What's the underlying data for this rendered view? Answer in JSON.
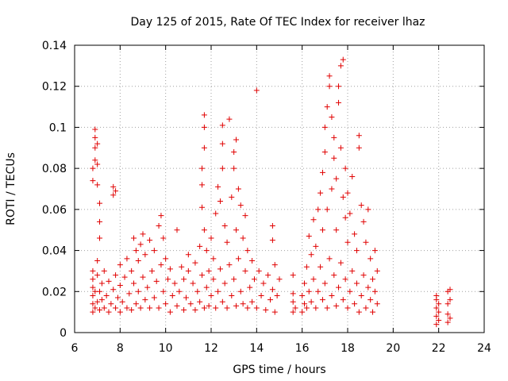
{
  "chart_data": {
    "type": "scatter",
    "title": "Day 125 of 2015, Rate Of TEC Index for receiver lhaz",
    "xlabel": "GPS time / hours",
    "ylabel": "ROTI / TECUs",
    "xlim": [
      6,
      24
    ],
    "ylim": [
      0,
      0.14
    ],
    "grid": true,
    "marker": "+",
    "color": "#e00000",
    "xticks": [
      6,
      8,
      10,
      12,
      14,
      16,
      18,
      20,
      22,
      24
    ],
    "xtick_labels": [
      "6",
      "8",
      "10",
      "12",
      "14",
      "16",
      "18",
      "20",
      "22",
      "24"
    ],
    "yticks": [
      0,
      0.02,
      0.04,
      0.06,
      0.08,
      0.1,
      0.12,
      0.14
    ],
    "ytick_labels": [
      "0",
      "0.02",
      "0.04",
      "0.06",
      "0.08",
      "0.1",
      "0.12",
      "0.14"
    ],
    "series": [
      {
        "name": "ROTI",
        "points": [
          [
            6.8,
            0.01
          ],
          [
            6.8,
            0.014
          ],
          [
            6.8,
            0.018
          ],
          [
            6.8,
            0.022
          ],
          [
            6.8,
            0.026
          ],
          [
            6.8,
            0.03
          ],
          [
            6.8,
            0.074
          ],
          [
            6.8,
            0.08
          ],
          [
            6.9,
            0.012
          ],
          [
            6.9,
            0.02
          ],
          [
            6.9,
            0.084
          ],
          [
            6.9,
            0.09
          ],
          [
            6.9,
            0.095
          ],
          [
            6.9,
            0.099
          ],
          [
            7.0,
            0.015
          ],
          [
            7.0,
            0.028
          ],
          [
            7.0,
            0.035
          ],
          [
            7.0,
            0.072
          ],
          [
            7.0,
            0.082
          ],
          [
            7.0,
            0.092
          ],
          [
            7.1,
            0.011
          ],
          [
            7.1,
            0.02
          ],
          [
            7.1,
            0.046
          ],
          [
            7.1,
            0.054
          ],
          [
            7.1,
            0.063
          ],
          [
            7.2,
            0.016
          ],
          [
            7.2,
            0.024
          ],
          [
            7.3,
            0.012
          ],
          [
            7.3,
            0.03
          ],
          [
            7.4,
            0.018
          ],
          [
            7.5,
            0.01
          ],
          [
            7.5,
            0.025
          ],
          [
            7.6,
            0.014
          ],
          [
            7.7,
            0.021
          ],
          [
            7.7,
            0.067
          ],
          [
            7.7,
            0.071
          ],
          [
            7.8,
            0.012
          ],
          [
            7.8,
            0.028
          ],
          [
            7.8,
            0.069
          ],
          [
            7.9,
            0.017
          ],
          [
            8.0,
            0.01
          ],
          [
            8.0,
            0.023
          ],
          [
            8.0,
            0.033
          ],
          [
            8.1,
            0.015
          ],
          [
            8.2,
            0.027
          ],
          [
            8.3,
            0.012
          ],
          [
            8.3,
            0.036
          ],
          [
            8.4,
            0.019
          ],
          [
            8.5,
            0.011
          ],
          [
            8.5,
            0.03
          ],
          [
            8.6,
            0.024
          ],
          [
            8.6,
            0.046
          ],
          [
            8.7,
            0.014
          ],
          [
            8.7,
            0.04
          ],
          [
            8.8,
            0.02
          ],
          [
            8.8,
            0.035
          ],
          [
            8.9,
            0.012
          ],
          [
            8.9,
            0.043
          ],
          [
            9.0,
            0.027
          ],
          [
            9.0,
            0.048
          ],
          [
            9.1,
            0.016
          ],
          [
            9.1,
            0.038
          ],
          [
            9.2,
            0.022
          ],
          [
            9.3,
            0.012
          ],
          [
            9.3,
            0.045
          ],
          [
            9.4,
            0.03
          ],
          [
            9.5,
            0.017
          ],
          [
            9.5,
            0.04
          ],
          [
            9.6,
            0.025
          ],
          [
            9.7,
            0.012
          ],
          [
            9.7,
            0.052
          ],
          [
            9.8,
            0.033
          ],
          [
            9.8,
            0.057
          ],
          [
            9.9,
            0.02
          ],
          [
            9.9,
            0.046
          ],
          [
            10.0,
            0.014
          ],
          [
            10.0,
            0.036
          ],
          [
            10.1,
            0.026
          ],
          [
            10.2,
            0.01
          ],
          [
            10.2,
            0.031
          ],
          [
            10.3,
            0.018
          ],
          [
            10.4,
            0.024
          ],
          [
            10.5,
            0.013
          ],
          [
            10.5,
            0.05
          ],
          [
            10.6,
            0.02
          ],
          [
            10.7,
            0.032
          ],
          [
            10.8,
            0.011
          ],
          [
            10.8,
            0.026
          ],
          [
            10.9,
            0.017
          ],
          [
            11.0,
            0.03
          ],
          [
            11.0,
            0.038
          ],
          [
            11.1,
            0.014
          ],
          [
            11.2,
            0.024
          ],
          [
            11.3,
            0.011
          ],
          [
            11.3,
            0.034
          ],
          [
            11.4,
            0.02
          ],
          [
            11.5,
            0.015
          ],
          [
            11.5,
            0.042
          ],
          [
            11.6,
            0.028
          ],
          [
            11.6,
            0.061
          ],
          [
            11.6,
            0.072
          ],
          [
            11.6,
            0.08
          ],
          [
            11.7,
            0.012
          ],
          [
            11.7,
            0.05
          ],
          [
            11.7,
            0.09
          ],
          [
            11.7,
            0.1
          ],
          [
            11.7,
            0.106
          ],
          [
            11.8,
            0.022
          ],
          [
            11.8,
            0.04
          ],
          [
            11.9,
            0.013
          ],
          [
            11.9,
            0.03
          ],
          [
            12.0,
            0.018
          ],
          [
            12.0,
            0.046
          ],
          [
            12.1,
            0.026
          ],
          [
            12.1,
            0.036
          ],
          [
            12.2,
            0.012
          ],
          [
            12.2,
            0.058
          ],
          [
            12.3,
            0.02
          ],
          [
            12.3,
            0.071
          ],
          [
            12.4,
            0.031
          ],
          [
            12.4,
            0.064
          ],
          [
            12.5,
            0.015
          ],
          [
            12.5,
            0.08
          ],
          [
            12.5,
            0.092
          ],
          [
            12.5,
            0.101
          ],
          [
            12.6,
            0.024
          ],
          [
            12.6,
            0.052
          ],
          [
            12.7,
            0.012
          ],
          [
            12.7,
            0.044
          ],
          [
            12.8,
            0.033
          ],
          [
            12.8,
            0.104
          ],
          [
            12.9,
            0.018
          ],
          [
            12.9,
            0.066
          ],
          [
            13.0,
            0.026
          ],
          [
            13.0,
            0.08
          ],
          [
            13.0,
            0.088
          ],
          [
            13.1,
            0.013
          ],
          [
            13.1,
            0.05
          ],
          [
            13.1,
            0.094
          ],
          [
            13.2,
            0.036
          ],
          [
            13.2,
            0.07
          ],
          [
            13.3,
            0.02
          ],
          [
            13.3,
            0.062
          ],
          [
            13.4,
            0.014
          ],
          [
            13.4,
            0.046
          ],
          [
            13.5,
            0.03
          ],
          [
            13.5,
            0.057
          ],
          [
            13.6,
            0.012
          ],
          [
            13.6,
            0.04
          ],
          [
            13.7,
            0.022
          ],
          [
            13.8,
            0.015
          ],
          [
            13.8,
            0.035
          ],
          [
            13.9,
            0.026
          ],
          [
            14.0,
            0.012
          ],
          [
            14.0,
            0.118
          ],
          [
            14.1,
            0.03
          ],
          [
            14.2,
            0.018
          ],
          [
            14.3,
            0.024
          ],
          [
            14.4,
            0.011
          ],
          [
            14.5,
            0.028
          ],
          [
            14.6,
            0.016
          ],
          [
            14.7,
            0.021
          ],
          [
            14.7,
            0.045
          ],
          [
            14.7,
            0.052
          ],
          [
            14.8,
            0.01
          ],
          [
            14.8,
            0.033
          ],
          [
            14.9,
            0.018
          ],
          [
            15.0,
            0.026
          ],
          [
            15.6,
            0.01
          ],
          [
            15.6,
            0.015
          ],
          [
            15.6,
            0.019
          ],
          [
            15.6,
            0.028
          ],
          [
            15.7,
            0.012
          ],
          [
            16.0,
            0.01
          ],
          [
            16.0,
            0.018
          ],
          [
            16.1,
            0.014
          ],
          [
            16.1,
            0.024
          ],
          [
            16.2,
            0.012
          ],
          [
            16.2,
            0.032
          ],
          [
            16.3,
            0.02
          ],
          [
            16.3,
            0.047
          ],
          [
            16.4,
            0.015
          ],
          [
            16.4,
            0.038
          ],
          [
            16.5,
            0.026
          ],
          [
            16.5,
            0.055
          ],
          [
            16.6,
            0.012
          ],
          [
            16.6,
            0.042
          ],
          [
            16.7,
            0.02
          ],
          [
            16.7,
            0.06
          ],
          [
            16.8,
            0.032
          ],
          [
            16.8,
            0.068
          ],
          [
            16.9,
            0.016
          ],
          [
            16.9,
            0.05
          ],
          [
            16.9,
            0.078
          ],
          [
            17.0,
            0.024
          ],
          [
            17.0,
            0.088
          ],
          [
            17.0,
            0.1
          ],
          [
            17.1,
            0.012
          ],
          [
            17.1,
            0.06
          ],
          [
            17.1,
            0.11
          ],
          [
            17.2,
            0.036
          ],
          [
            17.2,
            0.12
          ],
          [
            17.2,
            0.125
          ],
          [
            17.3,
            0.018
          ],
          [
            17.3,
            0.07
          ],
          [
            17.3,
            0.105
          ],
          [
            17.4,
            0.028
          ],
          [
            17.4,
            0.085
          ],
          [
            17.4,
            0.095
          ],
          [
            17.5,
            0.013
          ],
          [
            17.5,
            0.05
          ],
          [
            17.5,
            0.075
          ],
          [
            17.6,
            0.022
          ],
          [
            17.6,
            0.112
          ],
          [
            17.6,
            0.12
          ],
          [
            17.7,
            0.034
          ],
          [
            17.7,
            0.09
          ],
          [
            17.7,
            0.13
          ],
          [
            17.8,
            0.016
          ],
          [
            17.8,
            0.066
          ],
          [
            17.8,
            0.133
          ],
          [
            17.9,
            0.026
          ],
          [
            17.9,
            0.056
          ],
          [
            17.9,
            0.08
          ],
          [
            18.0,
            0.012
          ],
          [
            18.0,
            0.044
          ],
          [
            18.0,
            0.068
          ],
          [
            18.1,
            0.02
          ],
          [
            18.1,
            0.058
          ],
          [
            18.2,
            0.03
          ],
          [
            18.2,
            0.076
          ],
          [
            18.3,
            0.014
          ],
          [
            18.3,
            0.048
          ],
          [
            18.4,
            0.024
          ],
          [
            18.4,
            0.04
          ],
          [
            18.5,
            0.01
          ],
          [
            18.5,
            0.09
          ],
          [
            18.5,
            0.096
          ],
          [
            18.6,
            0.018
          ],
          [
            18.6,
            0.062
          ],
          [
            18.7,
            0.028
          ],
          [
            18.7,
            0.054
          ],
          [
            18.8,
            0.012
          ],
          [
            18.8,
            0.044
          ],
          [
            18.9,
            0.022
          ],
          [
            18.9,
            0.06
          ],
          [
            19.0,
            0.016
          ],
          [
            19.0,
            0.036
          ],
          [
            19.1,
            0.01
          ],
          [
            19.1,
            0.026
          ],
          [
            19.2,
            0.02
          ],
          [
            19.2,
            0.04
          ],
          [
            19.3,
            0.014
          ],
          [
            19.3,
            0.03
          ],
          [
            21.9,
            0.004
          ],
          [
            21.9,
            0.008
          ],
          [
            21.9,
            0.012
          ],
          [
            21.9,
            0.016
          ],
          [
            21.9,
            0.018
          ],
          [
            22.0,
            0.006
          ],
          [
            22.0,
            0.01
          ],
          [
            22.0,
            0.014
          ],
          [
            22.4,
            0.005
          ],
          [
            22.4,
            0.009
          ],
          [
            22.4,
            0.014
          ],
          [
            22.4,
            0.02
          ],
          [
            22.5,
            0.007
          ],
          [
            22.5,
            0.016
          ],
          [
            22.5,
            0.021
          ]
        ]
      }
    ]
  }
}
